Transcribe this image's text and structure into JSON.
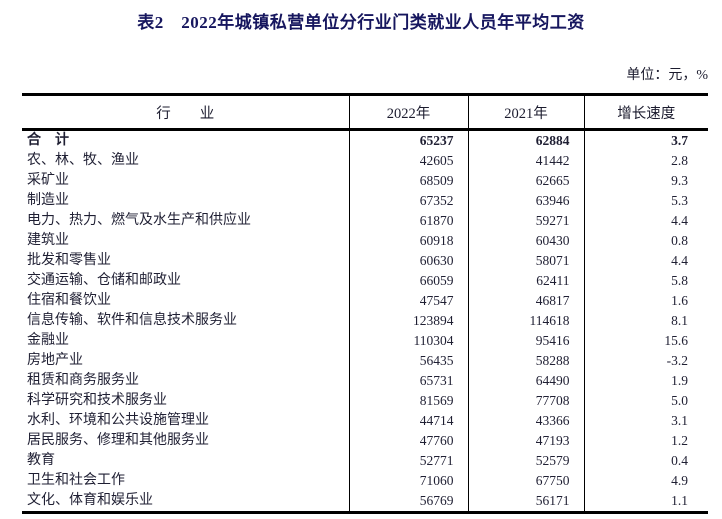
{
  "page": {
    "title": "表2　2022年城镇私营单位分行业门类就业人员年平均工资",
    "unit_note": "单位：元，%"
  },
  "table": {
    "columns": [
      "行　　业",
      "2022年",
      "2021年",
      "增长速度"
    ],
    "rows": [
      {
        "industry": "合　计",
        "y2022": "65237",
        "y2021": "62884",
        "growth": "3.7",
        "bold": true
      },
      {
        "industry": "农、林、牧、渔业",
        "y2022": "42605",
        "y2021": "41442",
        "growth": "2.8",
        "bold": false
      },
      {
        "industry": "采矿业",
        "y2022": "68509",
        "y2021": "62665",
        "growth": "9.3",
        "bold": false
      },
      {
        "industry": "制造业",
        "y2022": "67352",
        "y2021": "63946",
        "growth": "5.3",
        "bold": false
      },
      {
        "industry": "电力、热力、燃气及水生产和供应业",
        "y2022": "61870",
        "y2021": "59271",
        "growth": "4.4",
        "bold": false
      },
      {
        "industry": "建筑业",
        "y2022": "60918",
        "y2021": "60430",
        "growth": "0.8",
        "bold": false
      },
      {
        "industry": "批发和零售业",
        "y2022": "60630",
        "y2021": "58071",
        "growth": "4.4",
        "bold": false
      },
      {
        "industry": "交通运输、仓储和邮政业",
        "y2022": "66059",
        "y2021": "62411",
        "growth": "5.8",
        "bold": false
      },
      {
        "industry": "住宿和餐饮业",
        "y2022": "47547",
        "y2021": "46817",
        "growth": "1.6",
        "bold": false
      },
      {
        "industry": "信息传输、软件和信息技术服务业",
        "y2022": "123894",
        "y2021": "114618",
        "growth": "8.1",
        "bold": false
      },
      {
        "industry": "金融业",
        "y2022": "110304",
        "y2021": "95416",
        "growth": "15.6",
        "bold": false
      },
      {
        "industry": "房地产业",
        "y2022": "56435",
        "y2021": "58288",
        "growth": "-3.2",
        "bold": false
      },
      {
        "industry": "租赁和商务服务业",
        "y2022": "65731",
        "y2021": "64490",
        "growth": "1.9",
        "bold": false
      },
      {
        "industry": "科学研究和技术服务业",
        "y2022": "81569",
        "y2021": "77708",
        "growth": "5.0",
        "bold": false
      },
      {
        "industry": "水利、环境和公共设施管理业",
        "y2022": "44714",
        "y2021": "43366",
        "growth": "3.1",
        "bold": false
      },
      {
        "industry": "居民服务、修理和其他服务业",
        "y2022": "47760",
        "y2021": "47193",
        "growth": "1.2",
        "bold": false
      },
      {
        "industry": "教育",
        "y2022": "52771",
        "y2021": "52579",
        "growth": "0.4",
        "bold": false
      },
      {
        "industry": "卫生和社会工作",
        "y2022": "71060",
        "y2021": "67750",
        "growth": "4.9",
        "bold": false
      },
      {
        "industry": "文化、体育和娱乐业",
        "y2022": "56769",
        "y2021": "56171",
        "growth": "1.1",
        "bold": false
      }
    ]
  }
}
